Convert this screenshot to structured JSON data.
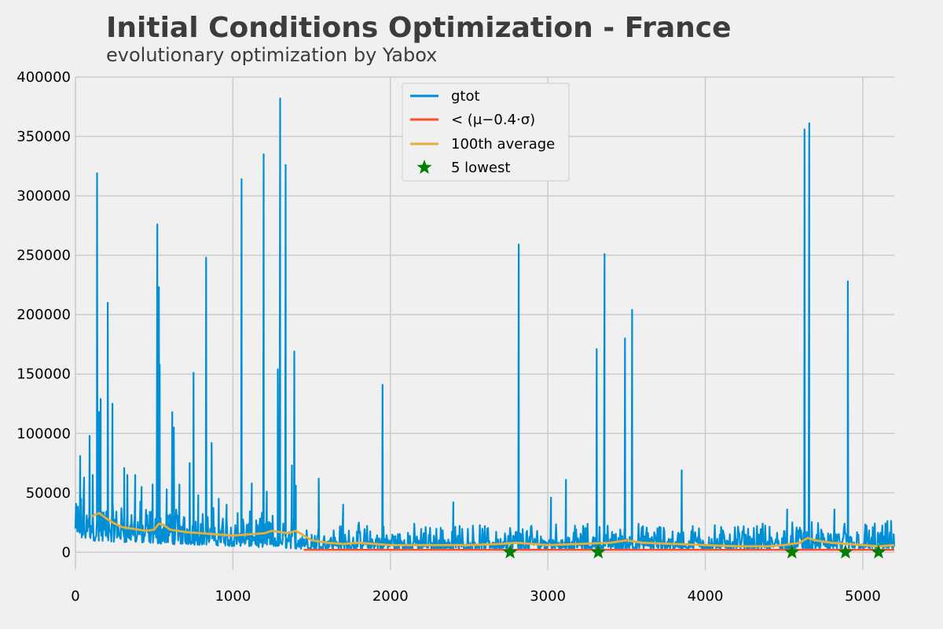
{
  "chart_data": {
    "type": "line",
    "title": "Initial Conditions Optimization - France",
    "subtitle": "evolutionary optimization by Yabox",
    "xlabel": "",
    "ylabel": "",
    "xlim": [
      0,
      5200
    ],
    "ylim": [
      -15000,
      400000
    ],
    "x_ticks": [
      0,
      1000,
      2000,
      3000,
      4000,
      5000
    ],
    "y_ticks": [
      0,
      50000,
      100000,
      150000,
      200000,
      250000,
      300000,
      350000,
      400000
    ],
    "x_tick_labels": [
      "0",
      "1000",
      "2000",
      "3000",
      "4000",
      "5000"
    ],
    "y_tick_labels": [
      "0",
      "50000",
      "100000",
      "150000",
      "200000",
      "250000",
      "300000",
      "350000",
      "400000"
    ],
    "grid": true,
    "legend_position": "top-center",
    "colors": {
      "gtot": "#008fd5",
      "threshold": "#fc4f30",
      "average": "#e5ae38",
      "lowest": "#008000",
      "background": "#f0f0f0",
      "grid": "#cbcbcb"
    },
    "series": [
      {
        "name": "gtot",
        "kind": "noisy-line",
        "baseline_segments": [
          [
            0,
            10000,
            45000
          ],
          [
            200,
            9000,
            40000
          ],
          [
            500,
            7000,
            35000
          ],
          [
            800,
            6000,
            32000
          ],
          [
            1000,
            5000,
            30000
          ],
          [
            1400,
            3000,
            25000
          ],
          [
            1500,
            2000,
            22000
          ],
          [
            2000,
            2000,
            20000
          ],
          [
            3000,
            2000,
            20000
          ],
          [
            4000,
            2000,
            20000
          ],
          [
            5200,
            2000,
            22000
          ]
        ],
        "spikes": [
          {
            "x": 30,
            "y": 81000
          },
          {
            "x": 55,
            "y": 63000
          },
          {
            "x": 90,
            "y": 98000
          },
          {
            "x": 110,
            "y": 65000
          },
          {
            "x": 137,
            "y": 319000
          },
          {
            "x": 150,
            "y": 118000
          },
          {
            "x": 160,
            "y": 129000
          },
          {
            "x": 205,
            "y": 210000
          },
          {
            "x": 235,
            "y": 125000
          },
          {
            "x": 310,
            "y": 71000
          },
          {
            "x": 330,
            "y": 65000
          },
          {
            "x": 380,
            "y": 65000
          },
          {
            "x": 420,
            "y": 55000
          },
          {
            "x": 490,
            "y": 57000
          },
          {
            "x": 520,
            "y": 276000
          },
          {
            "x": 530,
            "y": 223000
          },
          {
            "x": 535,
            "y": 158000
          },
          {
            "x": 580,
            "y": 53000
          },
          {
            "x": 615,
            "y": 118000
          },
          {
            "x": 625,
            "y": 105000
          },
          {
            "x": 660,
            "y": 57000
          },
          {
            "x": 725,
            "y": 75000
          },
          {
            "x": 750,
            "y": 151000
          },
          {
            "x": 780,
            "y": 48000
          },
          {
            "x": 830,
            "y": 248000
          },
          {
            "x": 865,
            "y": 92000
          },
          {
            "x": 910,
            "y": 45000
          },
          {
            "x": 960,
            "y": 40000
          },
          {
            "x": 1030,
            "y": 33000
          },
          {
            "x": 1055,
            "y": 314000
          },
          {
            "x": 1120,
            "y": 58000
          },
          {
            "x": 1195,
            "y": 335000
          },
          {
            "x": 1215,
            "y": 51000
          },
          {
            "x": 1285,
            "y": 154000
          },
          {
            "x": 1300,
            "y": 382000
          },
          {
            "x": 1335,
            "y": 326000
          },
          {
            "x": 1375,
            "y": 73000
          },
          {
            "x": 1390,
            "y": 169000
          },
          {
            "x": 1400,
            "y": 56000
          },
          {
            "x": 1545,
            "y": 62000
          },
          {
            "x": 1700,
            "y": 40000
          },
          {
            "x": 1950,
            "y": 141000
          },
          {
            "x": 2400,
            "y": 42000
          },
          {
            "x": 2815,
            "y": 259000
          },
          {
            "x": 3020,
            "y": 46000
          },
          {
            "x": 3115,
            "y": 61000
          },
          {
            "x": 3310,
            "y": 171000
          },
          {
            "x": 3360,
            "y": 251000
          },
          {
            "x": 3490,
            "y": 180000
          },
          {
            "x": 3535,
            "y": 204000
          },
          {
            "x": 3850,
            "y": 69000
          },
          {
            "x": 4520,
            "y": 36000
          },
          {
            "x": 4630,
            "y": 356000
          },
          {
            "x": 4660,
            "y": 361000
          },
          {
            "x": 4820,
            "y": 36000
          },
          {
            "x": 4905,
            "y": 228000
          }
        ]
      },
      {
        "name": "< (μ−0.4·σ)",
        "kind": "line",
        "x": [
          1450,
          2000,
          3000,
          4000,
          5200
        ],
        "y": [
          2000,
          2000,
          2000,
          2000,
          2000
        ]
      },
      {
        "name": "100th average",
        "kind": "line",
        "x": [
          100,
          150,
          200,
          250,
          300,
          350,
          400,
          450,
          500,
          530,
          560,
          600,
          650,
          700,
          800,
          900,
          1000,
          1100,
          1200,
          1250,
          1300,
          1350,
          1400,
          1450,
          1500,
          1600,
          1700,
          1800,
          2000,
          2500,
          2700,
          2800,
          2900,
          3000,
          3200,
          3400,
          3500,
          3600,
          3800,
          4000,
          4200,
          4400,
          4500,
          4600,
          4650,
          4700,
          4800,
          4900,
          5000,
          5100,
          5200
        ],
        "y": [
          30000,
          33000,
          28000,
          24000,
          21000,
          20000,
          19000,
          18000,
          19000,
          24000,
          23000,
          19000,
          18000,
          17000,
          16000,
          15000,
          14000,
          15000,
          16000,
          18000,
          17000,
          16000,
          18000,
          14000,
          10000,
          8000,
          7000,
          8000,
          6000,
          6000,
          7000,
          8000,
          7000,
          6000,
          7000,
          8000,
          10000,
          8000,
          7000,
          6000,
          5000,
          5000,
          6000,
          8000,
          12000,
          10000,
          8000,
          7000,
          6000,
          5000,
          6000
        ]
      },
      {
        "name": "5 lowest",
        "kind": "scatter",
        "marker": "star",
        "x": [
          2760,
          3320,
          4550,
          4890,
          5100
        ],
        "y": [
          0,
          0,
          0,
          0,
          0
        ]
      }
    ],
    "legend_entries": [
      "gtot",
      "< (μ−0.4·σ)",
      "100th average",
      "5 lowest"
    ]
  }
}
